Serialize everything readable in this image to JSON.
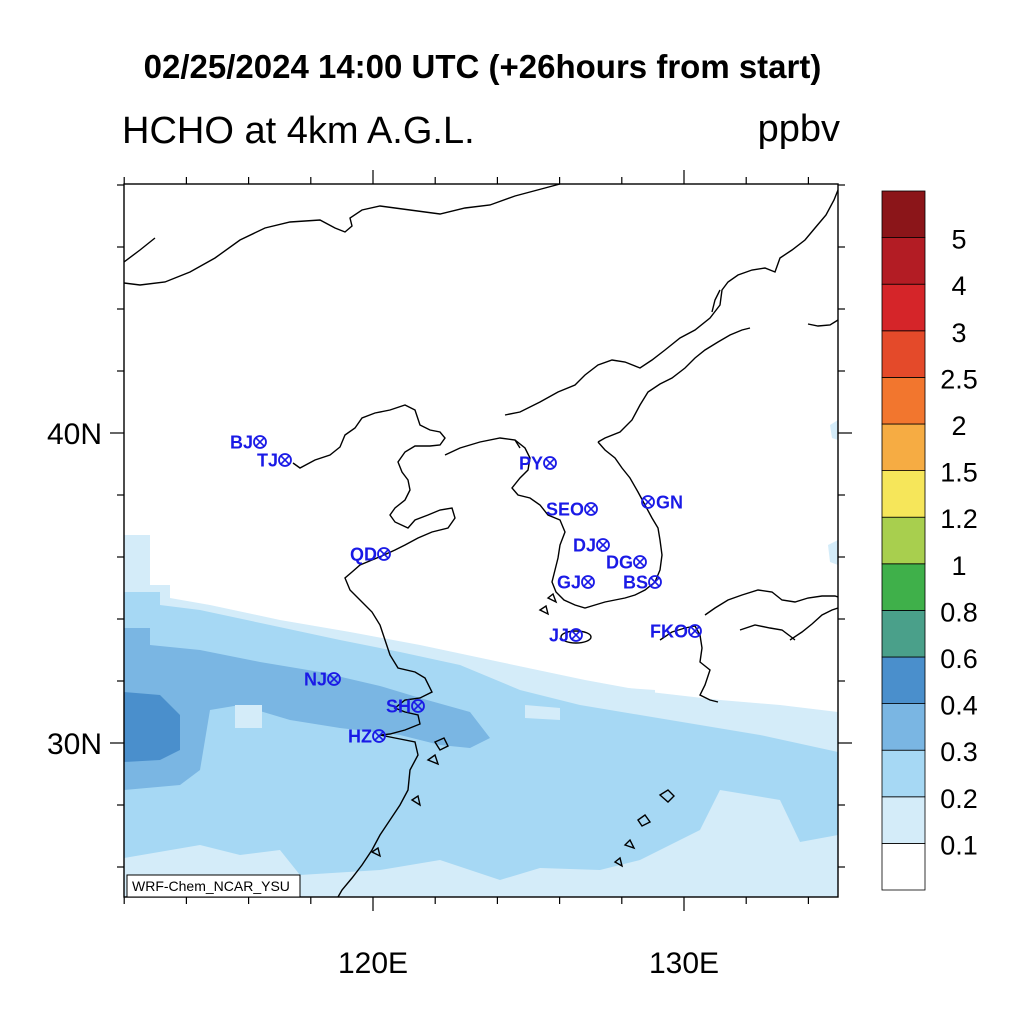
{
  "title": "02/25/2024 14:00 UTC (+26hours from start)",
  "subtitle": "HCHO at 4km A.G.L.",
  "units": "ppbv",
  "model_label": "WRF-Chem_NCAR_YSU",
  "axes": {
    "lat_ticks": [
      {
        "label": "40N",
        "lat": 40
      },
      {
        "label": "30N",
        "lat": 30
      }
    ],
    "lon_ticks": [
      {
        "label": "120E",
        "lon": 120
      },
      {
        "label": "130E",
        "lon": 130
      }
    ]
  },
  "colorbar": {
    "levels": [
      "0.1",
      "0.2",
      "0.3",
      "0.4",
      "0.6",
      "0.8",
      "1",
      "1.2",
      "1.5",
      "2",
      "2.5",
      "3",
      "4",
      "5"
    ],
    "colors": [
      "#ffffff",
      "#d4ecf9",
      "#a6d8f4",
      "#7ab6e3",
      "#4a8fcc",
      "#4aa08a",
      "#3fb04a",
      "#a8cf4e",
      "#f6e65a",
      "#f6ac43",
      "#f2762e",
      "#e44a2a",
      "#d52529",
      "#b31c24",
      "#8b1519"
    ]
  },
  "stations": [
    {
      "code": "BJ",
      "side": "left"
    },
    {
      "code": "TJ",
      "side": "left"
    },
    {
      "code": "PY",
      "side": "left"
    },
    {
      "code": "SEO",
      "side": "left"
    },
    {
      "code": "GN",
      "side": "right"
    },
    {
      "code": "QD",
      "side": "left"
    },
    {
      "code": "DJ",
      "side": "left"
    },
    {
      "code": "DG",
      "side": "left"
    },
    {
      "code": "GJ",
      "side": "left"
    },
    {
      "code": "BS",
      "side": "left"
    },
    {
      "code": "JJ",
      "side": "left"
    },
    {
      "code": "FKO",
      "side": "left"
    },
    {
      "code": "NJ",
      "side": "left"
    },
    {
      "code": "SH",
      "side": "left"
    },
    {
      "code": "HZ",
      "side": "left"
    }
  ]
}
